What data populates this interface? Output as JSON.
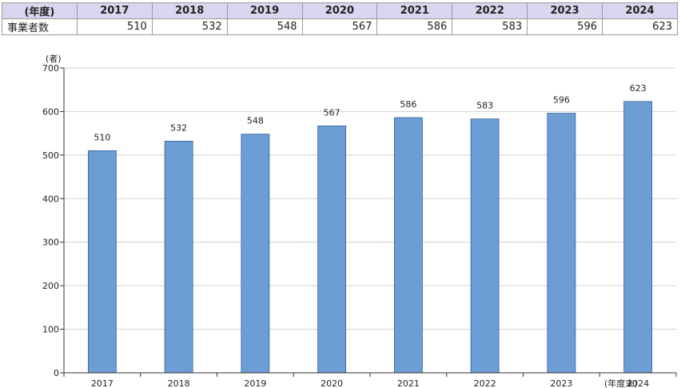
{
  "table": {
    "header_label": "(年度)",
    "row_label": "事業者数",
    "years": [
      "2017",
      "2018",
      "2019",
      "2020",
      "2021",
      "2022",
      "2023",
      "2024"
    ],
    "values": [
      "510",
      "532",
      "548",
      "567",
      "586",
      "583",
      "596",
      "623"
    ]
  },
  "chart_data": {
    "type": "bar",
    "categories": [
      "2017",
      "2018",
      "2019",
      "2020",
      "2021",
      "2022",
      "2023",
      "2024"
    ],
    "values": [
      510,
      532,
      548,
      567,
      586,
      583,
      596,
      623
    ],
    "data_labels": [
      "510",
      "532",
      "548",
      "567",
      "586",
      "583",
      "596",
      "623"
    ],
    "y_unit": "(者)",
    "x_unit": "(年度末)",
    "ylim": [
      0,
      700
    ],
    "yticks": [
      0,
      100,
      200,
      300,
      400,
      500,
      600,
      700
    ],
    "grid": true,
    "bar_color": "#6c9dd5",
    "bar_edge_color": "#2f5f97",
    "grid_color": "#cfcfcf"
  }
}
